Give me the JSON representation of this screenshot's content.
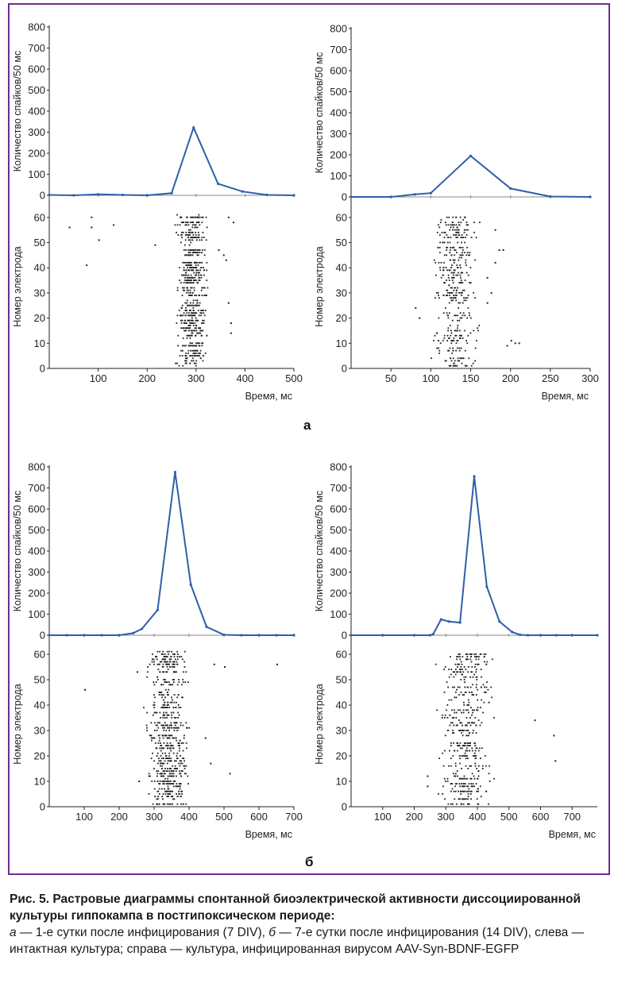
{
  "figure": {
    "panel_a_label": "а",
    "panel_b_label": "б",
    "axis_labels": {
      "histogram_y": "Количество спайков/50 мс",
      "raster_y": "Номер электрода",
      "x": "Время, мс"
    },
    "colors": {
      "frame": "#6b2d8f",
      "line": "#2f5fa8",
      "dots": "#222222"
    }
  },
  "caption": {
    "title": "Рис. 5. Растровые диаграммы спонтанной биоэлектрической активности диссоциированной культуры гиппокампа в постгипоксическом периоде:",
    "part_a_letter": "а",
    "part_a_text": " — 1-е сутки после инфицирования (7 DIV), ",
    "part_b_letter": "б",
    "part_b_text": " — 7-е сутки после инфицирования (14 DIV), слева — интактная культура; справа — культура, инфицированная вирусом AAV-Syn-BDNF-EGFP"
  },
  "chart_data": [
    {
      "type": "line",
      "panel": "а",
      "position": "left",
      "xlabel": "Время, мс",
      "ylabel": "Количество спайков/50 мс",
      "xlim": [
        0,
        500
      ],
      "ylim": [
        0,
        800
      ],
      "x_ticks": [
        100,
        200,
        300,
        400,
        500
      ],
      "y_ticks": [
        0,
        100,
        200,
        300,
        400,
        500,
        600,
        700,
        800
      ],
      "x": [
        0,
        50,
        100,
        150,
        200,
        250,
        295,
        345,
        395,
        445,
        500
      ],
      "values": [
        2,
        0,
        5,
        2,
        0,
        10,
        322,
        55,
        18,
        2,
        0
      ],
      "raster": {
        "ylabel": "Номер электрода",
        "ylim": [
          0,
          65
        ],
        "y_ticks": [
          0,
          10,
          20,
          30,
          40,
          50,
          60
        ],
        "band": [
          250,
          330
        ],
        "outliers": [
          [
            40,
            56
          ],
          [
            85,
            60
          ],
          [
            85,
            56
          ],
          [
            100,
            51
          ],
          [
            130,
            57
          ],
          [
            75,
            41
          ],
          [
            215,
            49
          ],
          [
            345,
            47
          ],
          [
            355,
            45
          ],
          [
            360,
            43
          ],
          [
            365,
            60
          ],
          [
            375,
            58
          ],
          [
            365,
            26
          ],
          [
            370,
            18
          ],
          [
            370,
            14
          ]
        ],
        "density": 0.5
      }
    },
    {
      "type": "line",
      "panel": "а",
      "position": "right",
      "xlabel": "Время, мс",
      "ylabel": "Количество спайков/50 мс",
      "xlim": [
        0,
        300
      ],
      "ylim": [
        0,
        800
      ],
      "x_ticks": [
        50,
        100,
        150,
        200,
        250,
        300
      ],
      "y_ticks": [
        0,
        100,
        200,
        300,
        400,
        500,
        600,
        700,
        800
      ],
      "x": [
        0,
        50,
        80,
        100,
        150,
        200,
        250,
        300
      ],
      "values": [
        0,
        0,
        12,
        18,
        195,
        40,
        2,
        0
      ],
      "raster": {
        "ylabel": "Номер электрода",
        "ylim": [
          0,
          65
        ],
        "y_ticks": [
          0,
          10,
          20,
          30,
          40,
          50,
          60
        ],
        "band": [
          95,
          165
        ],
        "outliers": [
          [
            80,
            24
          ],
          [
            85,
            20
          ],
          [
            170,
            26
          ],
          [
            175,
            30
          ],
          [
            180,
            42
          ],
          [
            185,
            47
          ],
          [
            190,
            47
          ],
          [
            195,
            9
          ],
          [
            200,
            11
          ],
          [
            205,
            10
          ],
          [
            210,
            10
          ],
          [
            180,
            55
          ],
          [
            170,
            36
          ]
        ],
        "density": 0.3
      }
    },
    {
      "type": "line",
      "panel": "б",
      "position": "left",
      "xlabel": "Время, мс",
      "ylabel": "Количество спайков/50 мс",
      "xlim": [
        0,
        700
      ],
      "ylim": [
        0,
        800
      ],
      "x_ticks": [
        100,
        200,
        300,
        400,
        500,
        600,
        700
      ],
      "y_ticks": [
        0,
        100,
        200,
        300,
        400,
        500,
        600,
        700,
        800
      ],
      "x": [
        0,
        50,
        100,
        150,
        200,
        240,
        265,
        310,
        360,
        405,
        450,
        500,
        550,
        600,
        650,
        700
      ],
      "values": [
        0,
        0,
        0,
        0,
        0,
        10,
        30,
        120,
        775,
        240,
        40,
        2,
        0,
        0,
        0,
        0
      ],
      "raster": {
        "ylabel": "Номер электрода",
        "ylim": [
          0,
          65
        ],
        "y_ticks": [
          0,
          10,
          20,
          30,
          40,
          50,
          60
        ],
        "band": [
          260,
          415
        ],
        "outliers": [
          [
            100,
            46
          ],
          [
            250,
            53
          ],
          [
            255,
            10
          ],
          [
            470,
            56
          ],
          [
            500,
            55
          ],
          [
            515,
            13
          ],
          [
            460,
            17
          ],
          [
            445,
            27
          ],
          [
            650,
            56
          ]
        ],
        "density": 0.45
      }
    },
    {
      "type": "line",
      "panel": "б",
      "position": "right",
      "xlabel": "Время, мс",
      "ylabel": "Количество спайков/50 мс",
      "xlim": [
        0,
        780
      ],
      "ylim": [
        0,
        800
      ],
      "x_ticks": [
        100,
        200,
        300,
        400,
        500,
        600,
        700
      ],
      "y_ticks": [
        0,
        100,
        200,
        300,
        400,
        500,
        600,
        700,
        800
      ],
      "x": [
        0,
        100,
        200,
        250,
        260,
        285,
        310,
        345,
        390,
        430,
        470,
        510,
        535,
        560,
        600,
        650,
        700,
        780
      ],
      "values": [
        0,
        0,
        0,
        0,
        5,
        75,
        65,
        60,
        755,
        230,
        65,
        15,
        2,
        0,
        0,
        0,
        0,
        0
      ],
      "raster": {
        "ylabel": "Номер электрода",
        "ylim": [
          0,
          65
        ],
        "y_ticks": [
          0,
          10,
          20,
          30,
          40,
          50,
          60
        ],
        "band": [
          255,
          465
        ],
        "outliers": [
          [
            240,
            8
          ],
          [
            580,
            34
          ],
          [
            640,
            28
          ],
          [
            645,
            18
          ],
          [
            240,
            12
          ]
        ],
        "density": 0.42
      }
    }
  ]
}
